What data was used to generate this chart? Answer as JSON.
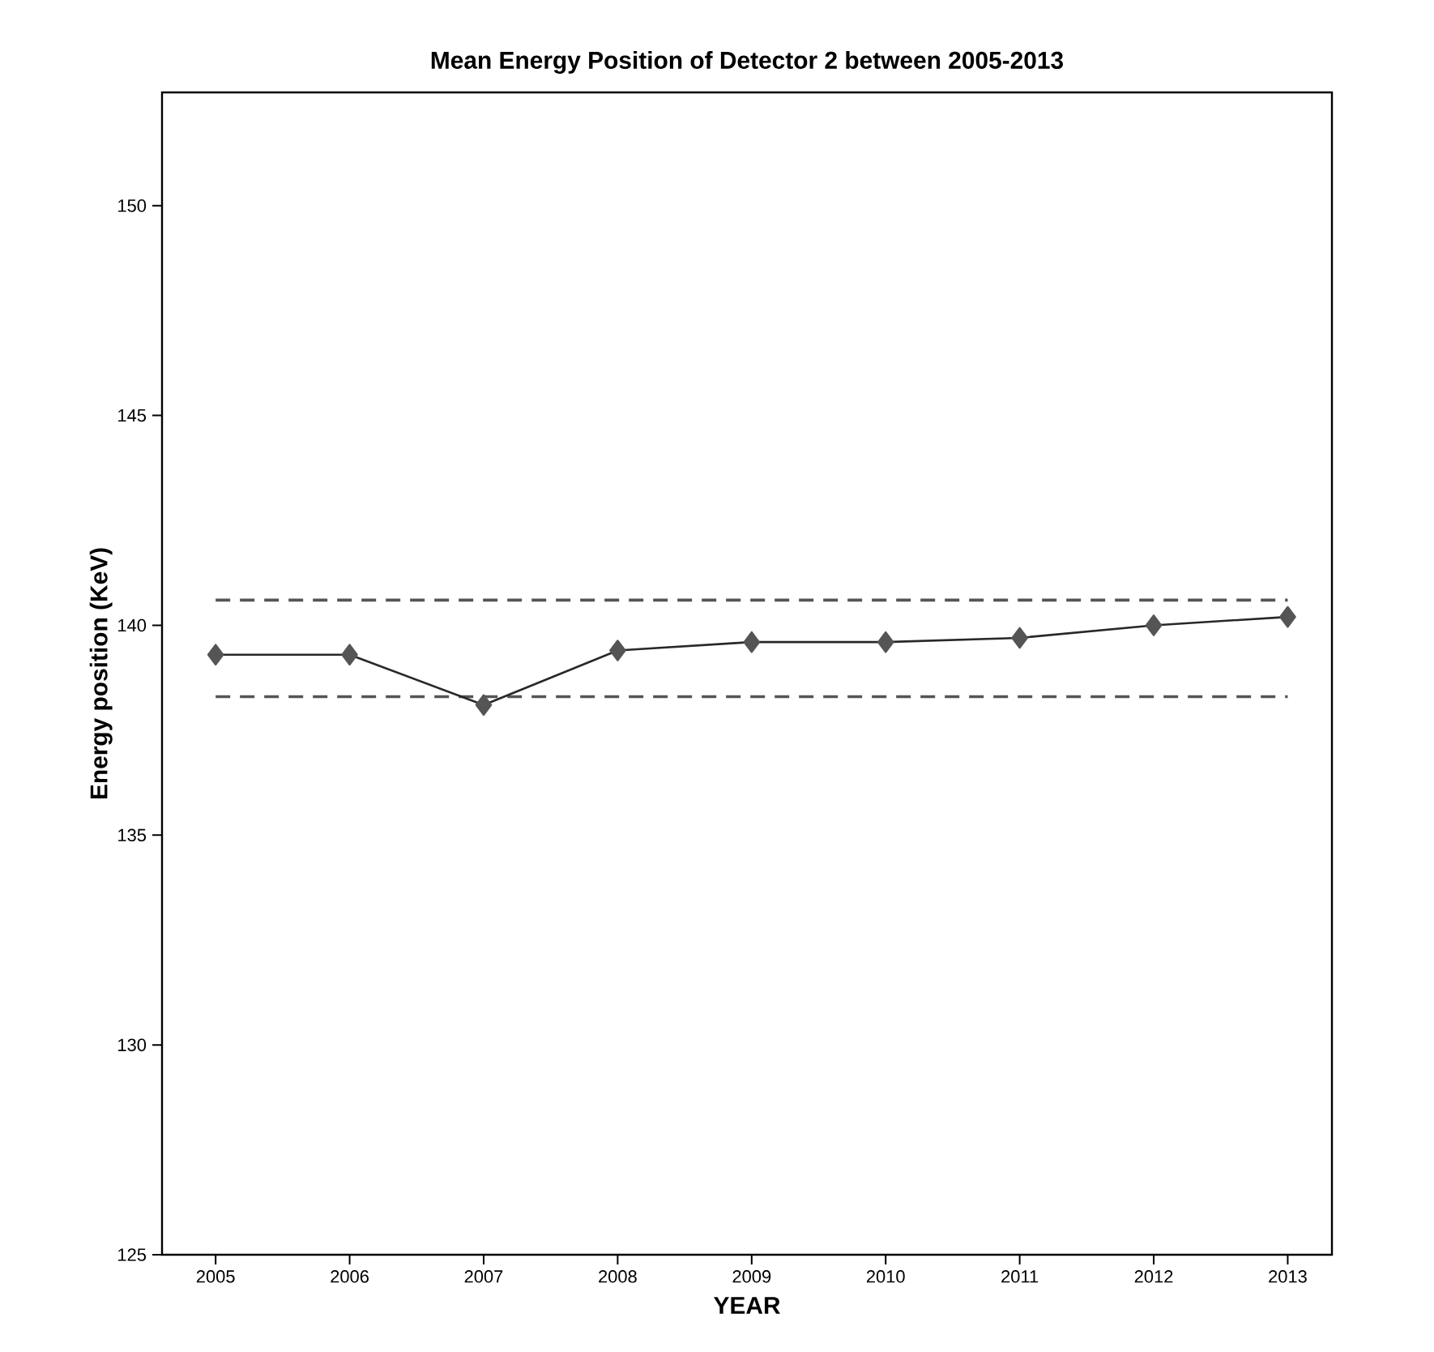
{
  "chart_data": {
    "type": "line",
    "title": "Mean Energy Position of Detector 2 between 2005-2013",
    "xlabel": "YEAR",
    "ylabel": "Energy position (KeV)",
    "categories": [
      "2005",
      "2006",
      "2007",
      "2008",
      "2009",
      "2010",
      "2011",
      "2012",
      "2013"
    ],
    "series": [
      {
        "color": "#555555",
        "values": [
          139.3,
          139.3,
          138.1,
          139.4,
          139.6,
          139.6,
          139.7,
          140.0,
          140.2
        ]
      }
    ],
    "ylim": [
      125,
      152.7
    ],
    "yticks": [
      125,
      130,
      135,
      140,
      145,
      150
    ],
    "marker": "diamond",
    "grid": false,
    "ref_lines": [
      {
        "axis": "y",
        "value": 140.6,
        "line_style": "dashed",
        "color": "#555555"
      },
      {
        "axis": "y",
        "value": 138.3,
        "line_style": "dashed",
        "color": "#555555"
      }
    ]
  }
}
